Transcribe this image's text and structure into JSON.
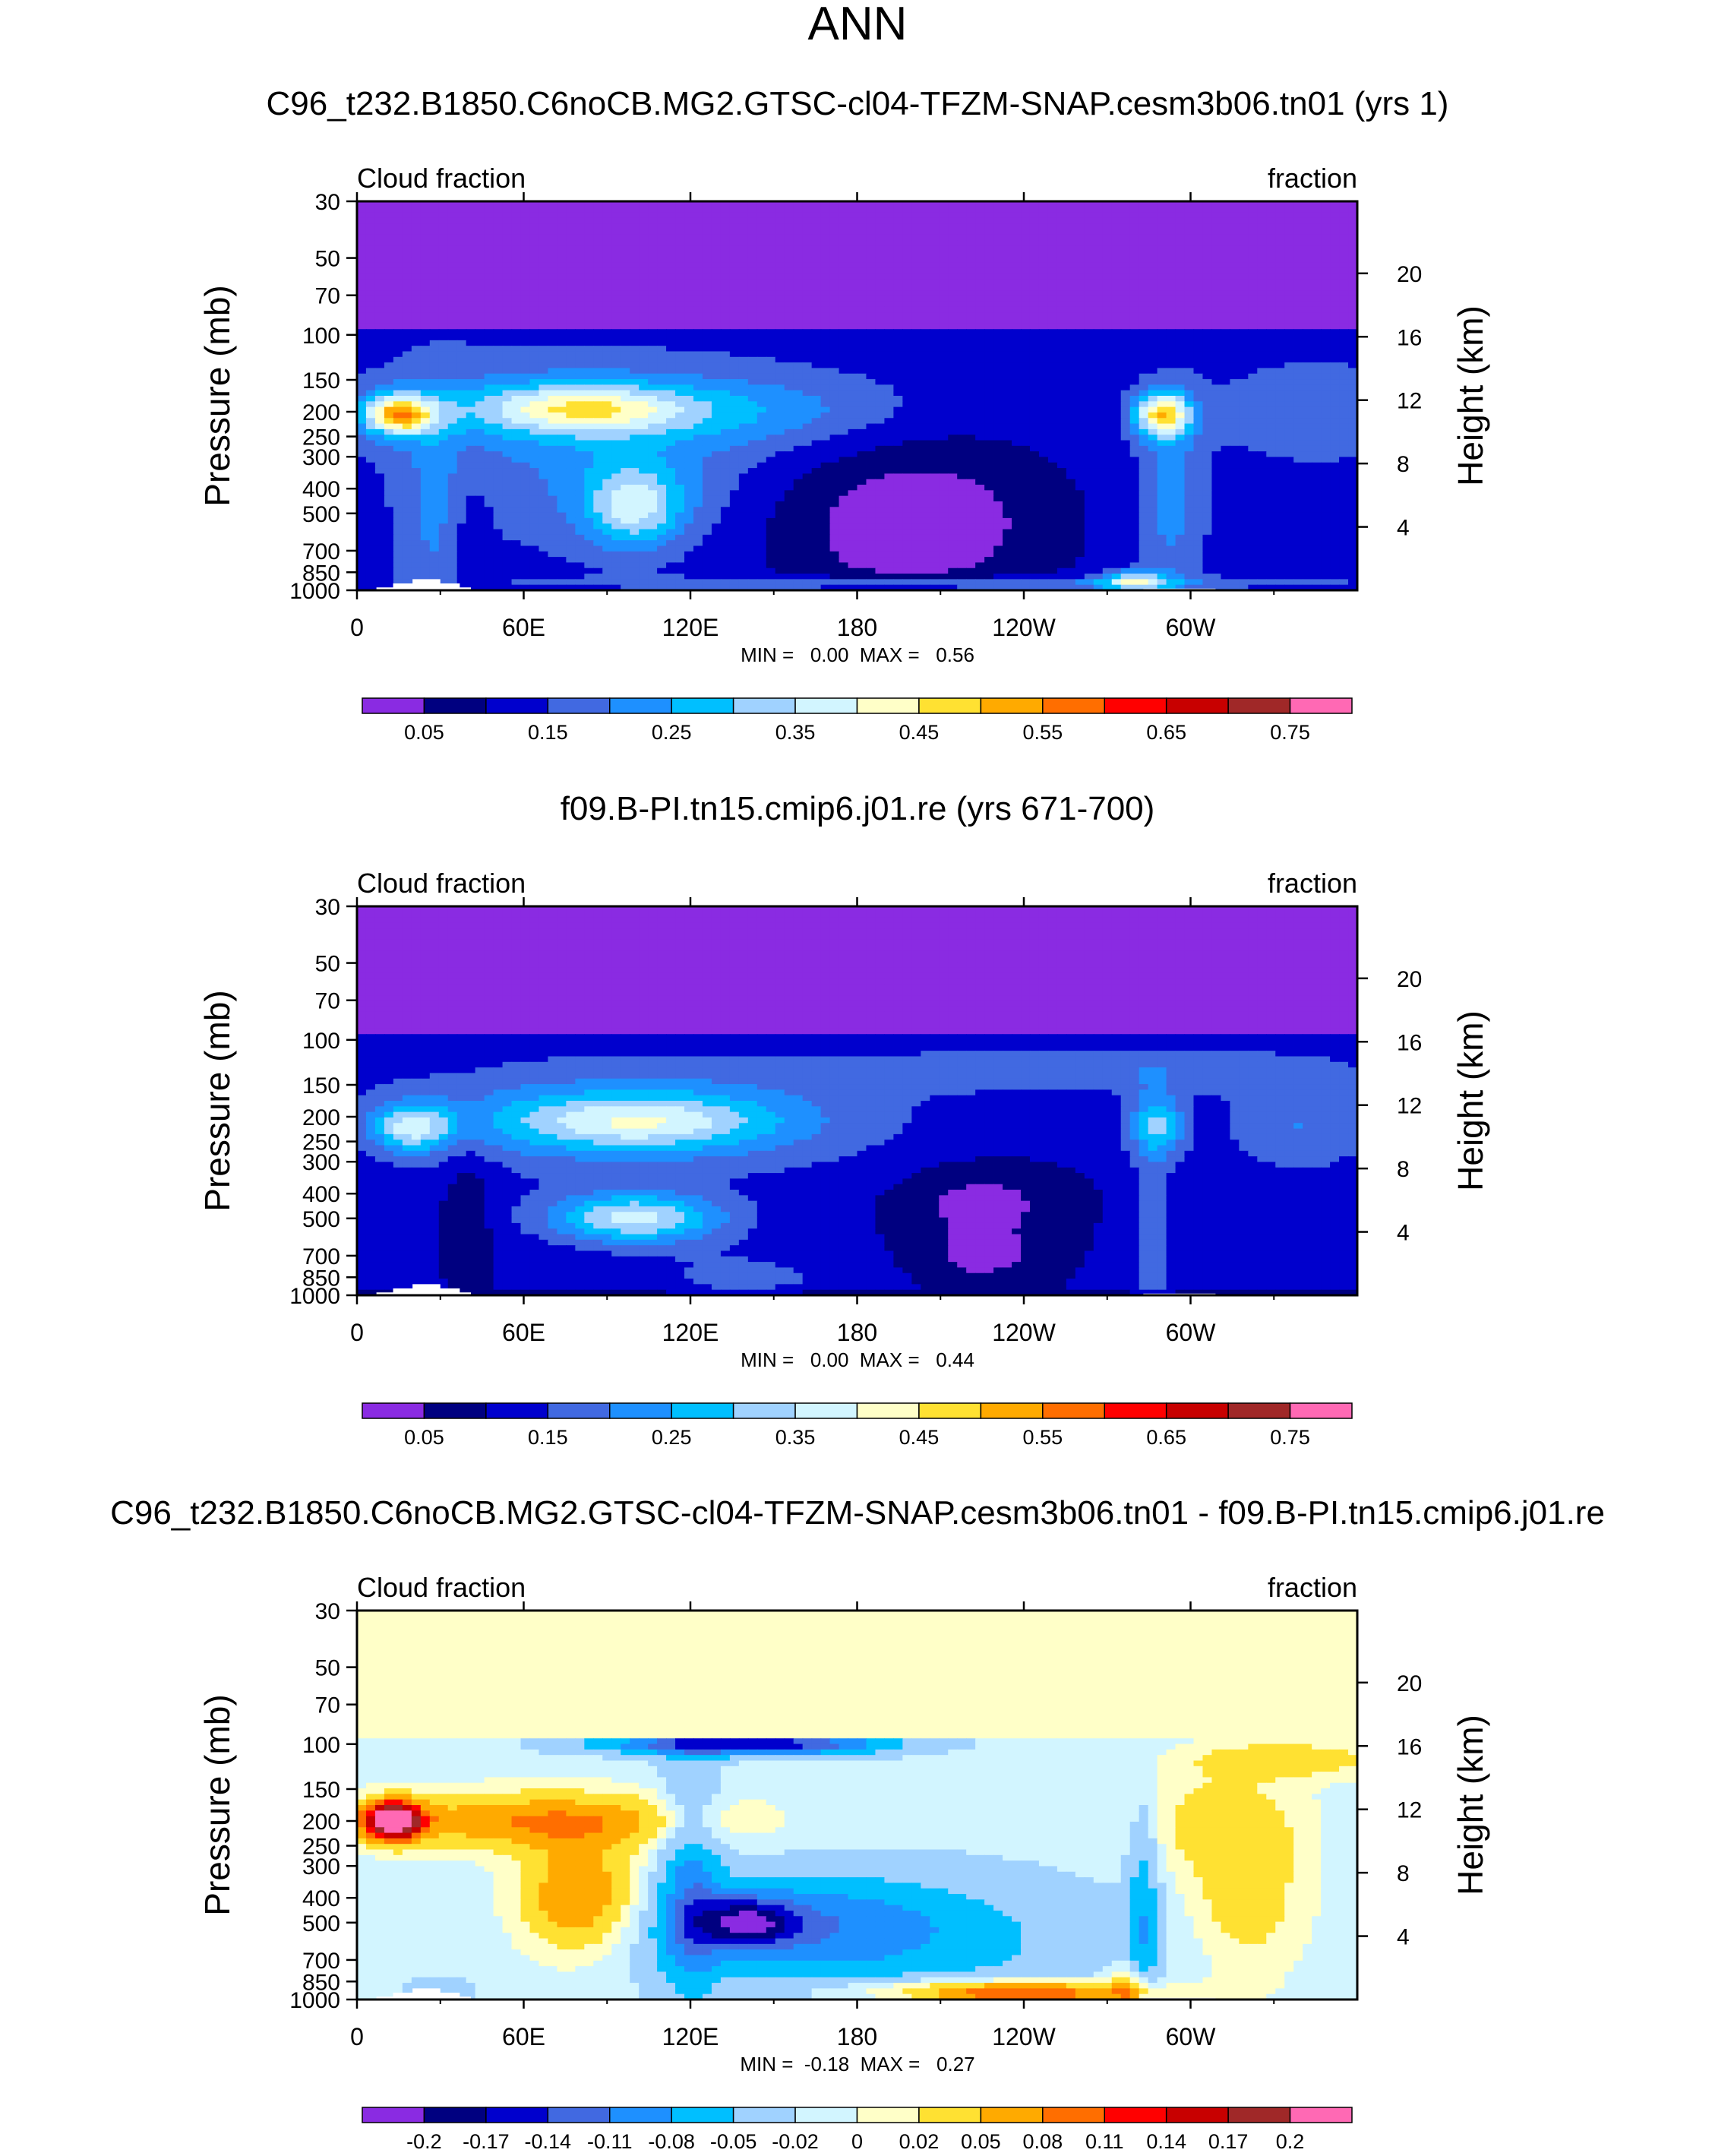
{
  "figure_title": "ANN",
  "chart_data": [
    {
      "type": "heatmap",
      "title": "C96_t232.B1850.C6noCB.MG2.GTSC-cl04-TFZM-SNAP.cesm3b06.tn01 (yrs 1)",
      "left_label": "Cloud fraction",
      "right_label": "fraction",
      "ylabel": "Pressure (mb)",
      "ylabel_right": "Height (km)",
      "x_ticks": [
        "0",
        "60E",
        "120E",
        "180",
        "120W",
        "60W"
      ],
      "x_tick_values": [
        0,
        60,
        120,
        180,
        240,
        300
      ],
      "xlim": [
        0,
        360
      ],
      "y_ticks": [
        "30",
        "50",
        "70",
        "100",
        "150",
        "200",
        "250",
        "300",
        "400",
        "500",
        "700",
        "850",
        "1000"
      ],
      "y_tick_values": [
        30,
        50,
        70,
        100,
        150,
        200,
        250,
        300,
        400,
        500,
        700,
        850,
        1000
      ],
      "ylim": [
        30,
        1000
      ],
      "height_ticks": [
        "20",
        "16",
        "12",
        "8",
        "4"
      ],
      "height_tick_values": [
        20,
        16,
        12,
        8,
        4
      ],
      "stats": "MIN =   0.00  MAX =   0.56",
      "min": 0.0,
      "max": 0.56,
      "colorbar_labels": [
        "0.05",
        "0.15",
        "0.25",
        "0.35",
        "0.45",
        "0.55",
        "0.65",
        "0.75"
      ],
      "levels": [
        0.05,
        0.1,
        0.15,
        0.2,
        0.25,
        0.3,
        0.35,
        0.4,
        0.45,
        0.5,
        0.55,
        0.6,
        0.65,
        0.7,
        0.75
      ]
    },
    {
      "type": "heatmap",
      "title": "f09.B-PI.tn15.cmip6.j01.re (yrs 671-700)",
      "left_label": "Cloud fraction",
      "right_label": "fraction",
      "ylabel": "Pressure (mb)",
      "ylabel_right": "Height (km)",
      "x_ticks": [
        "0",
        "60E",
        "120E",
        "180",
        "120W",
        "60W"
      ],
      "x_tick_values": [
        0,
        60,
        120,
        180,
        240,
        300
      ],
      "xlim": [
        0,
        360
      ],
      "y_ticks": [
        "30",
        "50",
        "70",
        "100",
        "150",
        "200",
        "250",
        "300",
        "400",
        "500",
        "700",
        "850",
        "1000"
      ],
      "y_tick_values": [
        30,
        50,
        70,
        100,
        150,
        200,
        250,
        300,
        400,
        500,
        700,
        850,
        1000
      ],
      "ylim": [
        30,
        1000
      ],
      "height_ticks": [
        "20",
        "16",
        "12",
        "8",
        "4"
      ],
      "height_tick_values": [
        20,
        16,
        12,
        8,
        4
      ],
      "stats": "MIN =   0.00  MAX =   0.44",
      "min": 0.0,
      "max": 0.44,
      "colorbar_labels": [
        "0.05",
        "0.15",
        "0.25",
        "0.35",
        "0.45",
        "0.55",
        "0.65",
        "0.75"
      ],
      "levels": [
        0.05,
        0.1,
        0.15,
        0.2,
        0.25,
        0.3,
        0.35,
        0.4,
        0.45,
        0.5,
        0.55,
        0.6,
        0.65,
        0.7,
        0.75
      ]
    },
    {
      "type": "heatmap",
      "title": "C96_t232.B1850.C6noCB.MG2.GTSC-cl04-TFZM-SNAP.cesm3b06.tn01 - f09.B-PI.tn15.cmip6.j01.re",
      "left_label": "Cloud fraction",
      "right_label": "fraction",
      "ylabel": "Pressure (mb)",
      "ylabel_right": "Height (km)",
      "x_ticks": [
        "0",
        "60E",
        "120E",
        "180",
        "120W",
        "60W"
      ],
      "x_tick_values": [
        0,
        60,
        120,
        180,
        240,
        300
      ],
      "xlim": [
        0,
        360
      ],
      "y_ticks": [
        "30",
        "50",
        "70",
        "100",
        "150",
        "200",
        "250",
        "300",
        "400",
        "500",
        "700",
        "850",
        "1000"
      ],
      "y_tick_values": [
        30,
        50,
        70,
        100,
        150,
        200,
        250,
        300,
        400,
        500,
        700,
        850,
        1000
      ],
      "ylim": [
        30,
        1000
      ],
      "height_ticks": [
        "20",
        "16",
        "12",
        "8",
        "4"
      ],
      "height_tick_values": [
        20,
        16,
        12,
        8,
        4
      ],
      "stats": "MIN =  -0.18  MAX =   0.27",
      "min": -0.18,
      "max": 0.27,
      "colorbar_labels": [
        "-0.2",
        "-0.17",
        "-0.14",
        "-0.11",
        "-0.08",
        "-0.05",
        "-0.02",
        "0",
        "0.02",
        "0.05",
        "0.08",
        "0.11",
        "0.14",
        "0.17",
        "0.2"
      ],
      "levels": [
        -0.2,
        -0.17,
        -0.14,
        -0.11,
        -0.08,
        -0.05,
        -0.02,
        0,
        0.02,
        0.05,
        0.08,
        0.11,
        0.14,
        0.17,
        0.2
      ]
    }
  ],
  "palette": [
    "#8a2be2",
    "#000080",
    "#0000cd",
    "#4169e1",
    "#1e90ff",
    "#00bfff",
    "#a0d2ff",
    "#d2f5ff",
    "#ffffc8",
    "#ffe132",
    "#ffaa00",
    "#ff6e00",
    "#ff0000",
    "#c80000",
    "#a02828",
    "#ff69b4"
  ]
}
